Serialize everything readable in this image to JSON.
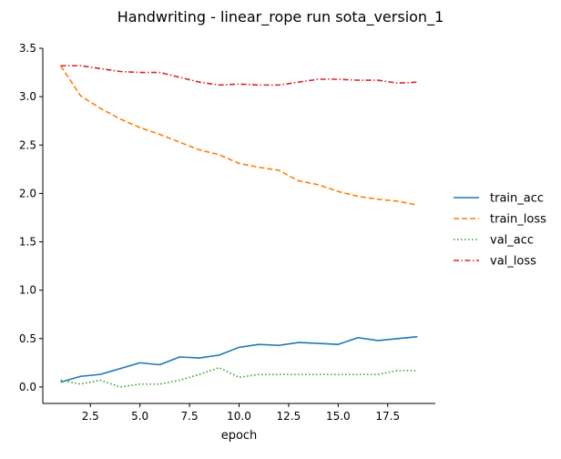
{
  "chart_data": {
    "type": "line",
    "title": "Handwriting - linear_rope run sota_version_1",
    "xlabel": "epoch",
    "ylabel": "",
    "xlim": [
      0.1,
      19.9
    ],
    "ylim": [
      -0.17,
      3.5
    ],
    "xticks": [
      2.5,
      5.0,
      7.5,
      10.0,
      12.5,
      15.0,
      17.5
    ],
    "xtick_labels": [
      "2.5",
      "5.0",
      "7.5",
      "10.0",
      "12.5",
      "15.0",
      "17.5"
    ],
    "yticks": [
      0.0,
      0.5,
      1.0,
      1.5,
      2.0,
      2.5,
      3.0,
      3.5
    ],
    "ytick_labels": [
      "0.0",
      "0.5",
      "1.0",
      "1.5",
      "2.0",
      "2.5",
      "3.0",
      "3.5"
    ],
    "grid": false,
    "legend_position": "right",
    "x": [
      1,
      2,
      3,
      4,
      5,
      6,
      7,
      8,
      9,
      10,
      11,
      12,
      13,
      14,
      15,
      16,
      17,
      18,
      19
    ],
    "series": [
      {
        "name": "train_acc",
        "color": "#1f77b4",
        "dash": "solid",
        "values": [
          0.05,
          0.11,
          0.13,
          0.19,
          0.25,
          0.23,
          0.31,
          0.3,
          0.33,
          0.41,
          0.44,
          0.43,
          0.46,
          0.45,
          0.44,
          0.51,
          0.48,
          0.5,
          0.52
        ]
      },
      {
        "name": "train_loss",
        "color": "#ff7f0e",
        "dash": "dashed",
        "values": [
          3.32,
          3.01,
          2.88,
          2.77,
          2.68,
          2.61,
          2.53,
          2.45,
          2.4,
          2.31,
          2.27,
          2.24,
          2.13,
          2.09,
          2.02,
          1.97,
          1.94,
          1.92,
          1.88
        ]
      },
      {
        "name": "val_acc",
        "color": "#2ca02c",
        "dash": "dotted",
        "values": [
          0.07,
          0.03,
          0.07,
          0.0,
          0.03,
          0.03,
          0.07,
          0.13,
          0.2,
          0.1,
          0.13,
          0.13,
          0.13,
          0.13,
          0.13,
          0.13,
          0.13,
          0.17,
          0.17
        ]
      },
      {
        "name": "val_loss",
        "color": "#d62728",
        "dash": "dashdot",
        "values": [
          3.32,
          3.32,
          3.29,
          3.26,
          3.25,
          3.25,
          3.2,
          3.15,
          3.12,
          3.13,
          3.12,
          3.12,
          3.15,
          3.18,
          3.18,
          3.17,
          3.17,
          3.14,
          3.15
        ]
      }
    ]
  }
}
